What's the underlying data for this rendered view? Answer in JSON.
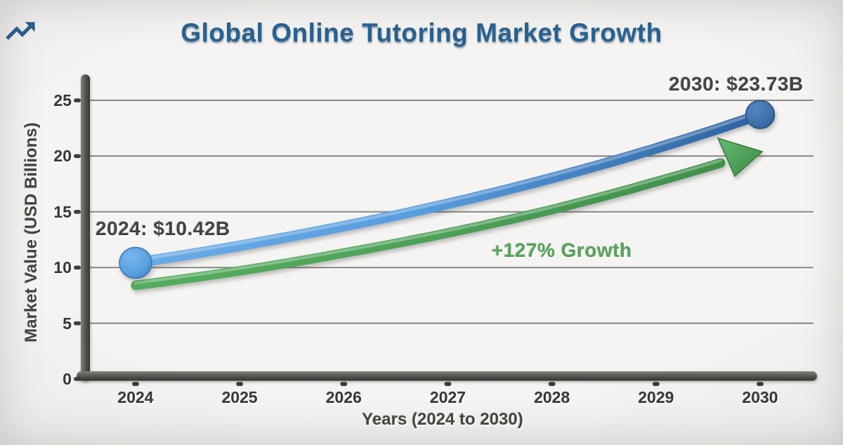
{
  "header": {
    "title": "Global Online Tutoring Market Growth",
    "icon": "trending-up"
  },
  "annotations": {
    "start_value": "2024: $10.42B",
    "end_value": "2030: $23.73B",
    "growth": "+127% Growth"
  },
  "chart_data": {
    "type": "line",
    "title": "Global Online Tutoring Market Growth",
    "xlabel": "Years (2024 to 2030)",
    "ylabel": "Market Value (USD Billions)",
    "x": [
      2024,
      2025,
      2026,
      2027,
      2028,
      2029,
      2030
    ],
    "x_tick_labels": [
      "2024",
      "2025",
      "2026",
      "2027",
      "2028",
      "2029",
      "2030"
    ],
    "y_ticks": [
      0,
      5,
      10,
      15,
      20,
      25
    ],
    "ylim": [
      0,
      25
    ],
    "grid": "horizontal",
    "legend": "none",
    "series": [
      {
        "name": "Market value (USD billions)",
        "color": "#4b8fd0",
        "style": "thick 3D tube with circular endpoint markers",
        "values": [
          10.42,
          11.95,
          13.71,
          15.72,
          18.03,
          20.69,
          23.73
        ],
        "labeled_points": {
          "2024": "$10.42B",
          "2030": "$23.73B"
        }
      },
      {
        "name": "Growth trend arrow (+127%)",
        "color": "#4ca455",
        "style": "thick 3D tube ending in arrowhead",
        "values": [
          8.4,
          9.7,
          11.3,
          13.1,
          15.2,
          17.7,
          20.5
        ]
      }
    ],
    "point_annotations": [
      {
        "text": "2024: $10.42B",
        "x": 2024,
        "y": 10.42
      },
      {
        "text": "2030: $23.73B",
        "x": 2030,
        "y": 23.73
      },
      {
        "text": "+127% Growth"
      }
    ]
  },
  "colors": {
    "background": "#f1f0ee",
    "title": "#28618f",
    "axis_bar": "#55544f",
    "gridline": "#8d8d8b",
    "tick_text": "#3a3935",
    "annotation_text": "#45433f",
    "growth_text": "#57a25a",
    "blue_light": "#6aabe6",
    "blue_dark": "#2e62a0",
    "green_light": "#5bb263",
    "green_dark": "#3f8f4a"
  }
}
